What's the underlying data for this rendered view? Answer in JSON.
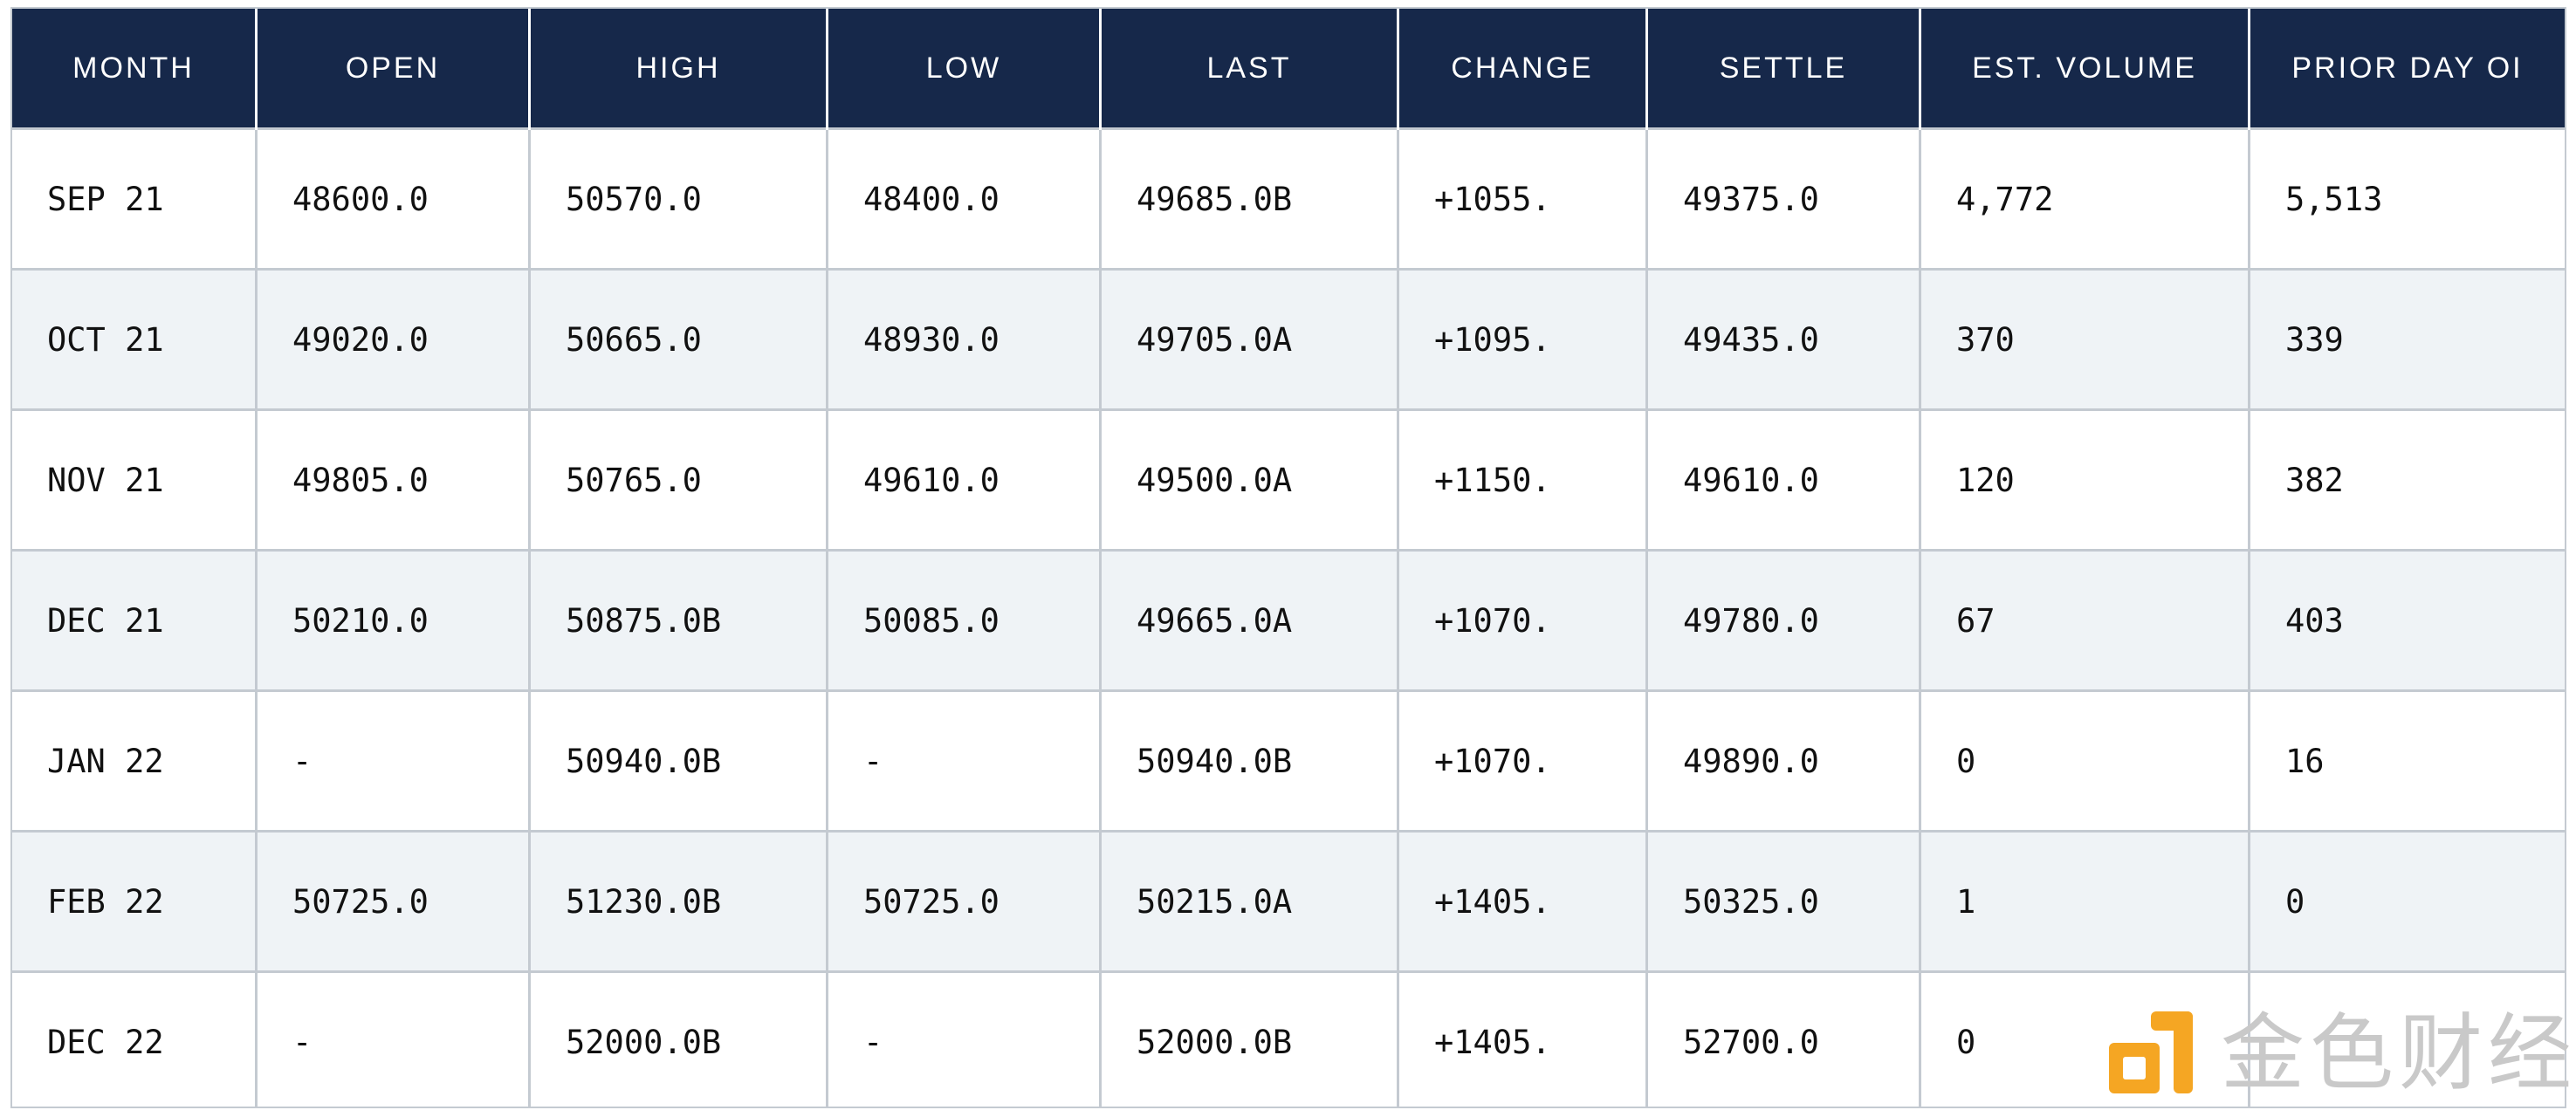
{
  "table": {
    "headers": [
      "MONTH",
      "OPEN",
      "HIGH",
      "LOW",
      "LAST",
      "CHANGE",
      "SETTLE",
      "EST. VOLUME",
      "PRIOR DAY OI"
    ],
    "rows": [
      [
        "SEP 21",
        "48600.0",
        "50570.0",
        "48400.0",
        "49685.0B",
        "+1055.",
        "49375.0",
        "4,772",
        "5,513"
      ],
      [
        "OCT 21",
        "49020.0",
        "50665.0",
        "48930.0",
        "49705.0A",
        "+1095.",
        "49435.0",
        "370",
        "339"
      ],
      [
        "NOV 21",
        "49805.0",
        "50765.0",
        "49610.0",
        "49500.0A",
        "+1150.",
        "49610.0",
        "120",
        "382"
      ],
      [
        "DEC 21",
        "50210.0",
        "50875.0B",
        "50085.0",
        "49665.0A",
        "+1070.",
        "49780.0",
        "67",
        "403"
      ],
      [
        "JAN 22",
        "-",
        "50940.0B",
        "-",
        "50940.0B",
        "+1070.",
        "49890.0",
        "0",
        "16"
      ],
      [
        "FEB 22",
        "50725.0",
        "51230.0B",
        "50725.0",
        "50215.0A",
        "+1405.",
        "50325.0",
        "1",
        "0"
      ],
      [
        "DEC 22",
        "-",
        "52000.0B",
        "-",
        "52000.0B",
        "+1405.",
        "52700.0",
        "0",
        ""
      ]
    ]
  },
  "watermark": {
    "icon": "jinse-logo-icon",
    "text": "金色财经",
    "icon_color": "#f5a623"
  },
  "colors": {
    "header_bg": "#16284a",
    "header_text": "#ffffff",
    "row_alt_bg": "#eff3f6",
    "grid_line": "#c4cad1"
  }
}
